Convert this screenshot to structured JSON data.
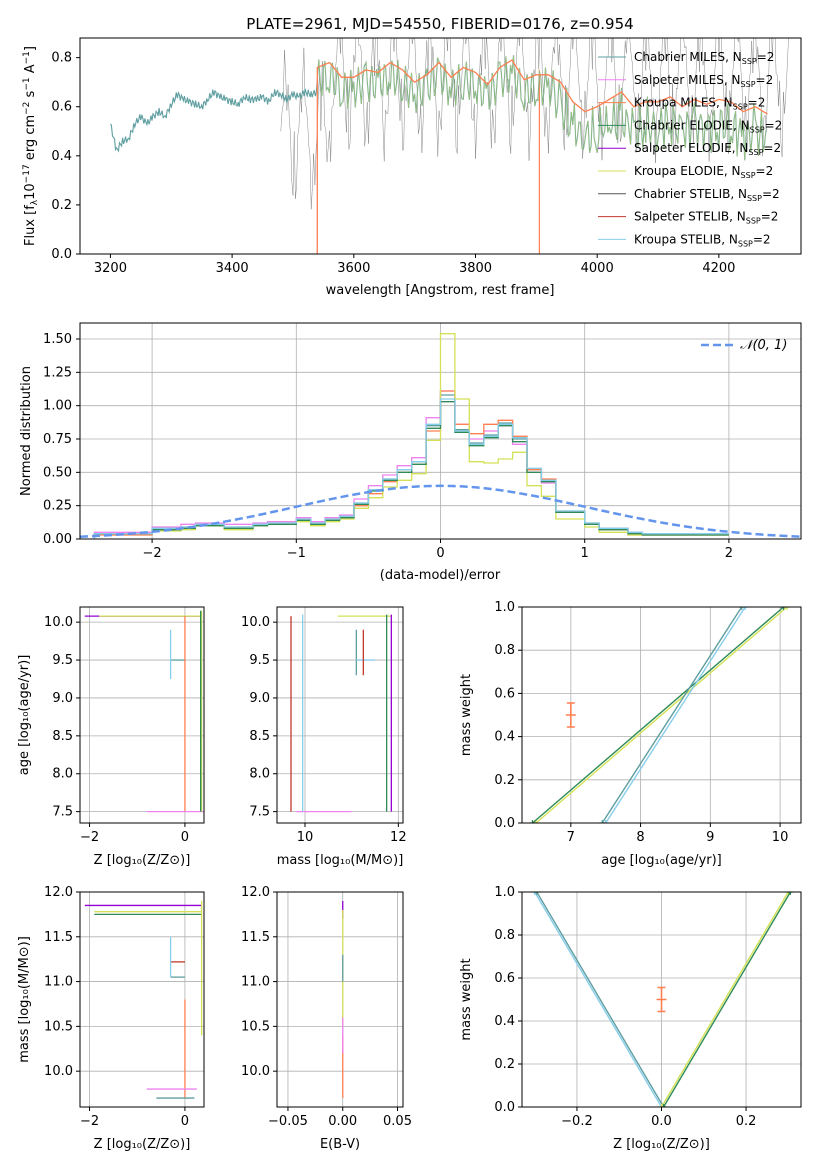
{
  "figure": {
    "title": "PLATE=2961, MJD=54550, FIBERID=0176, z=0.954"
  },
  "chart_data": [
    {
      "id": "spectrum",
      "type": "line",
      "title": "PLATE=2961, MJD=54550, FIBERID=0176, z=0.954",
      "xlabel": "wavelength [Angstrom, rest frame]",
      "ylabel": "Flux [f_λ 10^-17 erg cm^-2 s^-1 A^-1]",
      "xlim": [
        3150,
        4335
      ],
      "ylim": [
        0,
        0.88
      ],
      "xticks": [
        3200,
        3400,
        3600,
        3800,
        4000,
        4200
      ],
      "yticks": [
        0.0,
        0.2,
        0.4,
        0.6,
        0.8
      ],
      "legend_position": "top-right",
      "series": [
        {
          "name": "Chabrier MILES, N_SSP=2",
          "color": "#5f9ea0"
        },
        {
          "name": "Salpeter MILES, N_SSP=2",
          "color": "#ee82ee"
        },
        {
          "name": "Kroupa MILES, N_SSP=2",
          "color": "#ff7f50"
        },
        {
          "name": "Chabrier ELODIE, N_SSP=2",
          "color": "#2e8b57"
        },
        {
          "name": "Salpeter ELODIE, N_SSP=2",
          "color": "#9400d3"
        },
        {
          "name": "Kroupa ELODIE, N_SSP=2",
          "color": "#d4e157"
        },
        {
          "name": "Chabrier STELIB, N_SSP=2",
          "color": "#555555"
        },
        {
          "name": "Salpeter STELIB, N_SSP=2",
          "color": "#c0392b"
        },
        {
          "name": "Kroupa STELIB, N_SSP=2",
          "color": "#87ceeb"
        }
      ],
      "model_curve": {
        "x": [
          3200,
          3210,
          3220,
          3230,
          3240,
          3250,
          3260,
          3270,
          3280,
          3290,
          3300,
          3310,
          3320,
          3330,
          3340,
          3350,
          3360,
          3370,
          3380,
          3390,
          3400,
          3410,
          3420,
          3430,
          3440,
          3450,
          3460,
          3470,
          3480,
          3490,
          3500,
          3510,
          3520,
          3530,
          3540
        ],
        "y": [
          0.53,
          0.42,
          0.46,
          0.47,
          0.53,
          0.56,
          0.53,
          0.56,
          0.58,
          0.56,
          0.61,
          0.65,
          0.63,
          0.62,
          0.61,
          0.6,
          0.63,
          0.66,
          0.64,
          0.63,
          0.62,
          0.61,
          0.64,
          0.63,
          0.63,
          0.64,
          0.62,
          0.66,
          0.65,
          0.63,
          0.65,
          0.64,
          0.66,
          0.65,
          0.66
        ]
      },
      "orange_curve": {
        "x": [
          3540,
          3560,
          3580,
          3600,
          3620,
          3640,
          3660,
          3680,
          3700,
          3720,
          3740,
          3760,
          3780,
          3800,
          3820,
          3840,
          3860,
          3880,
          3900,
          3920,
          3940,
          3960,
          3980,
          4000,
          4020,
          4040,
          4060,
          4080,
          4100,
          4120,
          4140,
          4160,
          4180,
          4200,
          4220,
          4240,
          4260,
          4280
        ],
        "y": [
          0.76,
          0.78,
          0.72,
          0.72,
          0.75,
          0.74,
          0.78,
          0.75,
          0.7,
          0.73,
          0.78,
          0.72,
          0.76,
          0.74,
          0.69,
          0.76,
          0.79,
          0.71,
          0.73,
          0.73,
          0.7,
          0.62,
          0.58,
          0.6,
          0.63,
          0.66,
          0.6,
          0.62,
          0.62,
          0.64,
          0.6,
          0.63,
          0.61,
          0.63,
          0.62,
          0.58,
          0.6,
          0.57
        ]
      }
    },
    {
      "id": "residuals",
      "type": "line",
      "xlabel": "(data-model)/error",
      "ylabel": "Normed distribution",
      "xlim": [
        -2.5,
        2.5
      ],
      "ylim": [
        0,
        1.62
      ],
      "xticks": [
        -2,
        -1,
        0,
        1,
        2
      ],
      "yticks": [
        0.0,
        0.25,
        0.5,
        0.75,
        1.0,
        1.25,
        1.5
      ],
      "grid": true,
      "legend_position": "top-right",
      "gaussian": {
        "name": "𝒩(0, 1)",
        "mean": 0,
        "sigma": 1,
        "color": "#6495ed"
      },
      "bin_edges": [
        -2.4,
        -2.3,
        -2.2,
        -2.1,
        -2.0,
        -1.9,
        -1.8,
        -1.7,
        -1.6,
        -1.5,
        -1.4,
        -1.3,
        -1.2,
        -1.1,
        -1.0,
        -0.9,
        -0.8,
        -0.7,
        -0.6,
        -0.5,
        -0.4,
        -0.3,
        -0.2,
        -0.1,
        0.0,
        0.1,
        0.2,
        0.3,
        0.4,
        0.5,
        0.6,
        0.7,
        0.8,
        0.9,
        1.0,
        1.1,
        1.2,
        1.3,
        1.4,
        1.5,
        1.6,
        1.7,
        1.8,
        1.9,
        2.0
      ],
      "histograms": [
        {
          "color": "#5f9ea0",
          "values": [
            0.04,
            0.04,
            0.04,
            0.04,
            0.08,
            0.08,
            0.09,
            0.11,
            0.11,
            0.09,
            0.09,
            0.11,
            0.12,
            0.12,
            0.15,
            0.12,
            0.15,
            0.17,
            0.27,
            0.37,
            0.45,
            0.52,
            0.58,
            0.85,
            1.08,
            0.82,
            0.72,
            0.78,
            0.87,
            0.75,
            0.52,
            0.44,
            0.21,
            0.21,
            0.12,
            0.08,
            0.08,
            0.05,
            0.04,
            0.04,
            0.04,
            0.04,
            0.04,
            0.04
          ]
        },
        {
          "color": "#ee82ee",
          "values": [
            0.05,
            0.05,
            0.05,
            0.05,
            0.09,
            0.09,
            0.11,
            0.12,
            0.12,
            0.11,
            0.11,
            0.12,
            0.13,
            0.13,
            0.16,
            0.13,
            0.16,
            0.18,
            0.3,
            0.4,
            0.48,
            0.55,
            0.61,
            0.91,
            1.11,
            0.86,
            0.75,
            0.81,
            0.85,
            0.71,
            0.5,
            0.42,
            0.2,
            0.2,
            0.11,
            0.08,
            0.08,
            0.05,
            0.04,
            0.04,
            0.04,
            0.04,
            0.04,
            0.04
          ]
        },
        {
          "color": "#ff7f50",
          "values": [
            0.03,
            0.03,
            0.03,
            0.03,
            0.07,
            0.07,
            0.08,
            0.1,
            0.1,
            0.08,
            0.08,
            0.1,
            0.11,
            0.11,
            0.14,
            0.11,
            0.14,
            0.16,
            0.25,
            0.34,
            0.43,
            0.5,
            0.56,
            0.81,
            1.11,
            0.86,
            0.79,
            0.86,
            0.89,
            0.77,
            0.52,
            0.45,
            0.2,
            0.2,
            0.11,
            0.07,
            0.07,
            0.03,
            0.03,
            0.03,
            0.03,
            0.03,
            0.03,
            0.03
          ]
        },
        {
          "color": "#d4e157",
          "values": [
            0.04,
            0.04,
            0.04,
            0.04,
            0.06,
            0.06,
            0.07,
            0.1,
            0.1,
            0.07,
            0.07,
            0.1,
            0.11,
            0.11,
            0.13,
            0.1,
            0.13,
            0.15,
            0.23,
            0.31,
            0.39,
            0.44,
            0.49,
            0.74,
            1.54,
            1.05,
            0.58,
            0.57,
            0.6,
            0.65,
            0.4,
            0.32,
            0.15,
            0.15,
            0.09,
            0.05,
            0.05,
            0.03,
            0.03,
            0.03,
            0.03,
            0.03,
            0.03,
            0.03
          ]
        },
        {
          "color": "#2e8b57",
          "values": [
            0.04,
            0.04,
            0.04,
            0.04,
            0.07,
            0.07,
            0.08,
            0.1,
            0.1,
            0.08,
            0.08,
            0.1,
            0.11,
            0.11,
            0.14,
            0.11,
            0.14,
            0.16,
            0.26,
            0.36,
            0.44,
            0.5,
            0.56,
            0.83,
            1.03,
            0.8,
            0.7,
            0.76,
            0.85,
            0.73,
            0.5,
            0.43,
            0.2,
            0.2,
            0.11,
            0.07,
            0.07,
            0.04,
            0.03,
            0.03,
            0.03,
            0.03,
            0.03,
            0.03
          ]
        },
        {
          "color": "#87ceeb",
          "values": [
            0.04,
            0.04,
            0.04,
            0.04,
            0.08,
            0.08,
            0.09,
            0.11,
            0.11,
            0.09,
            0.09,
            0.11,
            0.12,
            0.12,
            0.15,
            0.12,
            0.15,
            0.17,
            0.27,
            0.37,
            0.45,
            0.52,
            0.58,
            0.86,
            1.05,
            0.81,
            0.71,
            0.77,
            0.86,
            0.76,
            0.53,
            0.44,
            0.21,
            0.21,
            0.12,
            0.08,
            0.08,
            0.05,
            0.04,
            0.04,
            0.04,
            0.04,
            0.04,
            0.04
          ]
        }
      ]
    },
    {
      "id": "age-vs-Z",
      "type": "scatter",
      "xlabel": "Z [log₁₀(Z/Z⊙)]",
      "ylabel": "age  [log₁₀(age/yr)]",
      "xlim": [
        -2.2,
        0.4
      ],
      "ylim": [
        7.35,
        10.2
      ],
      "xticks": [
        -2,
        0
      ],
      "yticks": [
        7.5,
        8.0,
        8.5,
        9.0,
        9.5,
        10.0
      ],
      "segments": [
        {
          "color": "#9400d3",
          "x1": -2.1,
          "y1": 10.08,
          "x2": 0.35,
          "y2": 10.08
        },
        {
          "color": "#d4e157",
          "x1": -1.8,
          "y1": 10.08,
          "x2": 0.35,
          "y2": 10.08
        },
        {
          "color": "#5f9ea0",
          "x1": -0.3,
          "y1": 9.5,
          "x2": 0.0,
          "y2": 9.5
        },
        {
          "color": "#87ceeb",
          "x1": -0.3,
          "y1": 9.25,
          "x2": -0.3,
          "y2": 9.9
        },
        {
          "color": "#ff7f50",
          "x1": 0.0,
          "y1": 7.5,
          "x2": 0.0,
          "y2": 10.08
        },
        {
          "color": "#ee82ee",
          "x1": -0.8,
          "y1": 7.5,
          "x2": 0.4,
          "y2": 7.5
        },
        {
          "color": "#d4e157",
          "x1": 0.35,
          "y1": 7.5,
          "x2": 0.35,
          "y2": 10.15
        },
        {
          "color": "#2e8b57",
          "x1": 0.33,
          "y1": 7.5,
          "x2": 0.33,
          "y2": 10.15
        }
      ]
    },
    {
      "id": "age-vs-mass",
      "type": "scatter",
      "xlabel": "mass [log₁₀(M/M⊙)]",
      "xlim": [
        9.4,
        12.1
      ],
      "ylim": [
        7.35,
        10.2
      ],
      "xticks": [
        10,
        12
      ],
      "yticks": [
        7.5,
        8.0,
        8.5,
        9.0,
        9.5,
        10.0
      ],
      "segments": [
        {
          "color": "#c0392b",
          "x1": 9.7,
          "y1": 7.5,
          "x2": 9.7,
          "y2": 10.08
        },
        {
          "color": "#ee82ee",
          "x1": 9.8,
          "y1": 7.5,
          "x2": 11.0,
          "y2": 7.5
        },
        {
          "color": "#5f9ea0",
          "x1": 11.1,
          "y1": 9.3,
          "x2": 11.1,
          "y2": 9.9
        },
        {
          "color": "#87ceeb",
          "x1": 11.1,
          "y1": 9.5,
          "x2": 11.5,
          "y2": 9.5
        },
        {
          "color": "#c0392b",
          "x1": 11.25,
          "y1": 9.3,
          "x2": 11.25,
          "y2": 9.9
        },
        {
          "color": "#d4e157",
          "x1": 10.7,
          "y1": 10.08,
          "x2": 11.85,
          "y2": 10.08
        },
        {
          "color": "#2e8b57",
          "x1": 11.75,
          "y1": 7.5,
          "x2": 11.75,
          "y2": 10.1
        },
        {
          "color": "#9400d3",
          "x1": 11.85,
          "y1": 7.5,
          "x2": 11.85,
          "y2": 10.1
        },
        {
          "color": "#87ceeb",
          "x1": 9.95,
          "y1": 7.5,
          "x2": 9.95,
          "y2": 10.1
        }
      ]
    },
    {
      "id": "mass-weight-vs-age",
      "type": "line",
      "xlabel": "age  [log₁₀(age/yr)]",
      "ylabel": "mass weight",
      "xlim": [
        6.3,
        10.3
      ],
      "ylim": [
        0,
        1.0
      ],
      "xticks": [
        7,
        8,
        9,
        10
      ],
      "yticks": [
        0.0,
        0.2,
        0.4,
        0.6,
        0.8,
        1.0
      ],
      "grid": true,
      "lines": [
        {
          "color": "#d4e157",
          "x": [
            6.5,
            10.1
          ],
          "y": [
            0.0,
            1.0
          ]
        },
        {
          "color": "#2e8b57",
          "x": [
            6.45,
            10.05
          ],
          "y": [
            0.0,
            1.0
          ]
        },
        {
          "color": "#87ceeb",
          "x": [
            7.5,
            9.5
          ],
          "y": [
            0.0,
            1.0
          ]
        },
        {
          "color": "#5f9ea0",
          "x": [
            7.45,
            9.45
          ],
          "y": [
            0.0,
            1.0
          ]
        }
      ],
      "points": [
        {
          "color": "#ff7f50",
          "x": 7.0,
          "y": 0.5
        }
      ]
    },
    {
      "id": "mass-vs-Z",
      "type": "scatter",
      "xlabel": "Z [log₁₀(Z/Z⊙)]",
      "ylabel": "mass [log₁₀(M/M⊙)]",
      "xlim": [
        -2.2,
        0.4
      ],
      "ylim": [
        9.6,
        12.0
      ],
      "xticks": [
        -2,
        0
      ],
      "yticks": [
        10.0,
        10.5,
        11.0,
        11.5,
        12.0
      ],
      "segments": [
        {
          "color": "#9400d3",
          "x1": -2.1,
          "y1": 11.85,
          "x2": 0.35,
          "y2": 11.85
        },
        {
          "color": "#d4e157",
          "x1": -1.9,
          "y1": 11.78,
          "x2": 0.35,
          "y2": 11.78
        },
        {
          "color": "#2e8b57",
          "x1": -1.9,
          "y1": 11.75,
          "x2": 0.35,
          "y2": 11.75
        },
        {
          "color": "#c0392b",
          "x1": -0.3,
          "y1": 11.22,
          "x2": 0.0,
          "y2": 11.22
        },
        {
          "color": "#5f9ea0",
          "x1": -0.3,
          "y1": 11.05,
          "x2": 0.0,
          "y2": 11.05
        },
        {
          "color": "#87ceeb",
          "x1": -0.3,
          "y1": 11.05,
          "x2": -0.3,
          "y2": 11.5
        },
        {
          "color": "#ff7f50",
          "x1": 0.0,
          "y1": 9.7,
          "x2": 0.0,
          "y2": 10.8
        },
        {
          "color": "#ee82ee",
          "x1": -0.8,
          "y1": 9.8,
          "x2": 0.25,
          "y2": 9.8
        },
        {
          "color": "#5f9ea0",
          "x1": -0.6,
          "y1": 9.7,
          "x2": 0.2,
          "y2": 9.7
        },
        {
          "color": "#d4e157",
          "x1": 0.35,
          "y1": 10.4,
          "x2": 0.35,
          "y2": 11.9
        }
      ]
    },
    {
      "id": "mass-vs-ebv",
      "type": "scatter",
      "xlabel": "E(B-V)",
      "xlim": [
        -0.06,
        0.055
      ],
      "ylim": [
        9.6,
        12.0
      ],
      "xticks": [
        -0.05,
        0.0,
        0.05
      ],
      "yticks": [
        10.0,
        10.5,
        11.0,
        11.5,
        12.0
      ],
      "segments": [
        {
          "color": "#9400d3",
          "x1": 0.0,
          "y1": 11.7,
          "x2": 0.0,
          "y2": 11.9
        },
        {
          "color": "#d4e157",
          "x1": 0.0,
          "y1": 10.5,
          "x2": 0.0,
          "y2": 11.8
        },
        {
          "color": "#5f9ea0",
          "x1": 0.0,
          "y1": 11.0,
          "x2": 0.0,
          "y2": 11.3
        },
        {
          "color": "#ff7f50",
          "x1": 0.0,
          "y1": 9.7,
          "x2": 0.0,
          "y2": 10.4
        },
        {
          "color": "#ee82ee",
          "x1": 0.0,
          "y1": 10.2,
          "x2": 0.0,
          "y2": 10.6
        }
      ]
    },
    {
      "id": "mass-weight-vs-Z",
      "type": "line",
      "xlabel": "Z [log₁₀(Z/Z⊙)]",
      "ylabel": "mass weight",
      "xlim": [
        -0.33,
        0.33
      ],
      "ylim": [
        0,
        1.0
      ],
      "xticks": [
        -0.2,
        0.0,
        0.2
      ],
      "yticks": [
        0.0,
        0.2,
        0.4,
        0.6,
        0.8,
        1.0
      ],
      "grid": true,
      "lines": [
        {
          "color": "#87ceeb",
          "x": [
            -0.3,
            0.0
          ],
          "y": [
            1.0,
            0.0
          ]
        },
        {
          "color": "#5f9ea0",
          "x": [
            -0.295,
            0.005
          ],
          "y": [
            1.0,
            0.0
          ]
        },
        {
          "color": "#d4e157",
          "x": [
            0.0,
            0.3
          ],
          "y": [
            0.0,
            1.0
          ]
        },
        {
          "color": "#2e8b57",
          "x": [
            0.005,
            0.305
          ],
          "y": [
            0.0,
            1.0
          ]
        }
      ],
      "points": [
        {
          "color": "#ff7f50",
          "x": 0.0,
          "y": 0.5
        }
      ]
    }
  ]
}
